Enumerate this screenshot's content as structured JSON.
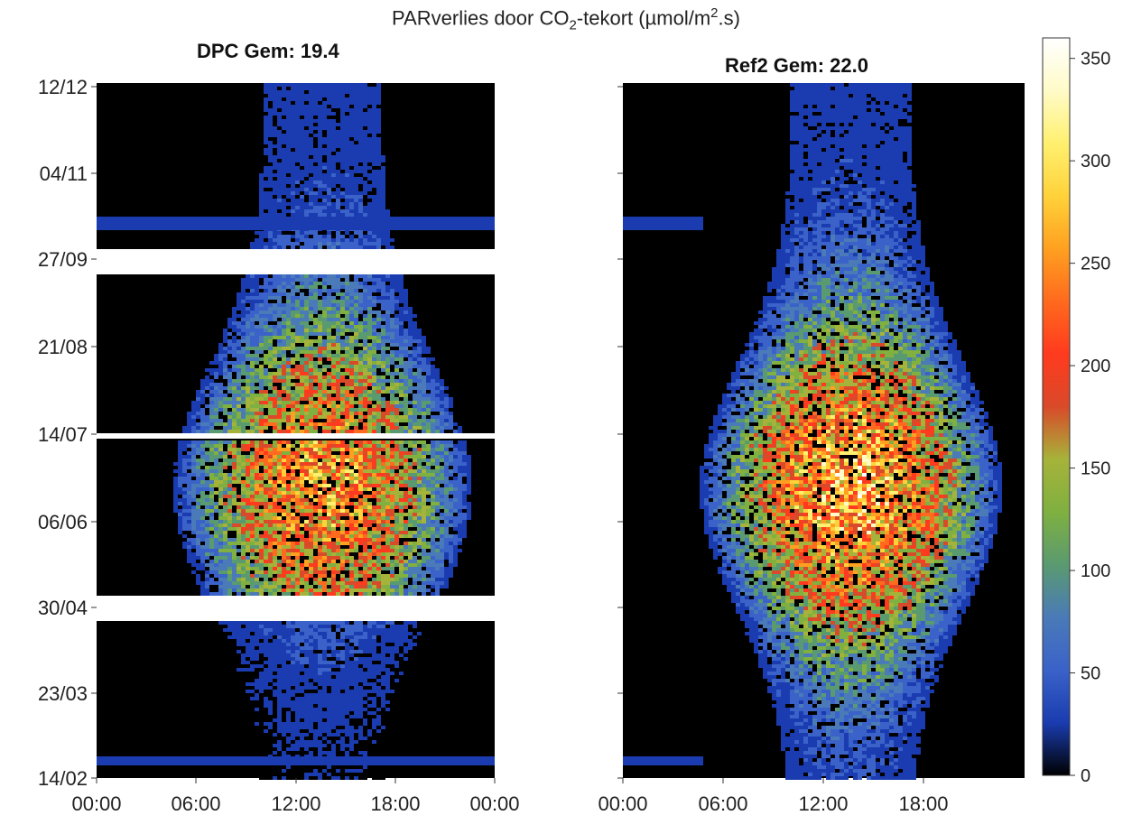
{
  "chart_data": {
    "type": "heatmap",
    "title_parts": {
      "pre": "PARverlies door CO",
      "sub": "2",
      "mid": "-tekort (µmol/m",
      "sup": "2",
      "post": ".s)"
    },
    "panels": [
      {
        "title": "DPC Gem: 19.4",
        "average": 19.4,
        "x_ticks": [
          "00:00",
          "06:00",
          "12:00",
          "18:00",
          "00:00"
        ],
        "y_ticks": [
          "12/12",
          "04/11",
          "27/09",
          "21/08",
          "14/07",
          "06/06",
          "30/04",
          "23/03",
          "14/02"
        ],
        "gaps_at": [
          "27/09",
          "14/07",
          "30/04"
        ]
      },
      {
        "title": "Ref2 Gem: 22.0",
        "average": 22.0,
        "x_ticks": [
          "00:00",
          "06:00",
          "12:00",
          "18:00"
        ],
        "y_ticks": [],
        "gaps_at": []
      }
    ],
    "x_axis": {
      "unit": "time of day",
      "range": [
        "00:00",
        "24:00"
      ]
    },
    "y_axis": {
      "unit": "date",
      "range": [
        "14/02",
        "12/12"
      ]
    },
    "colorbar": {
      "min": 0,
      "max": 360,
      "ticks": [
        "0",
        "50",
        "100",
        "150",
        "200",
        "250",
        "300",
        "350"
      ],
      "colors": [
        "#000000",
        "#1a3cb0",
        "#3a62c8",
        "#4a7ab8",
        "#5a9a70",
        "#7fb040",
        "#a6b33a",
        "#d94a2a",
        "#ff3a1e",
        "#ff6a1e",
        "#ffa020",
        "#ffd23a",
        "#fff070",
        "#fffbc8",
        "#ffffff"
      ]
    }
  }
}
